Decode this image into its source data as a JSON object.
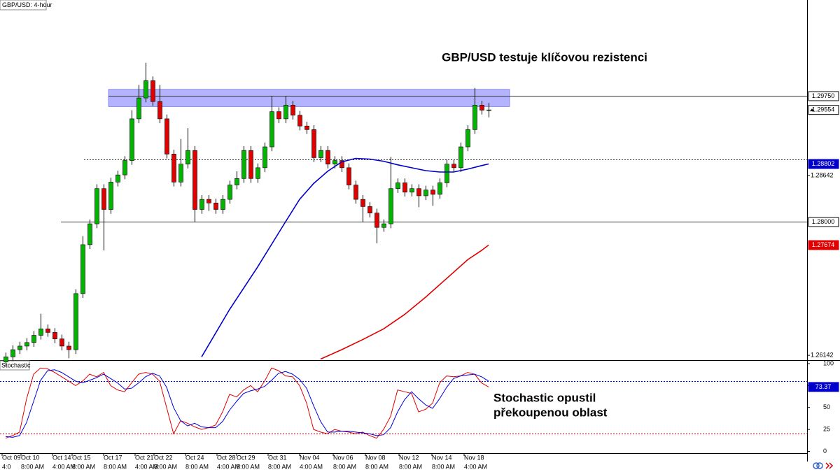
{
  "chart_data": [
    {
      "type": "candlestick",
      "title": "GBP/USD: 4-hour",
      "annotation": "GBP/USD testuje klíčovou rezistenci",
      "open": [
        1.2605,
        1.2612,
        1.2622,
        1.2627,
        1.2632,
        1.2642,
        1.2651,
        1.2646,
        1.2637,
        1.2627,
        1.2622,
        1.27,
        1.2768,
        1.2797,
        1.2846,
        1.2817,
        1.2855,
        1.2865,
        1.2885,
        1.2943,
        1.2972,
        1.2996,
        1.2967,
        1.2943,
        1.2894,
        1.2855,
        1.288,
        1.2899,
        1.2817,
        1.2831,
        1.2826,
        1.2817,
        1.2831,
        1.2851,
        1.286,
        1.2899,
        1.286,
        1.2875,
        1.2904,
        1.2953,
        1.2943,
        1.2962,
        1.2948,
        1.2933,
        1.2928,
        1.2889,
        1.2899,
        1.288,
        1.2885,
        1.2875,
        1.2851,
        1.2831,
        1.2821,
        1.2812,
        1.2792,
        1.2797,
        1.2846,
        1.2854,
        1.2841,
        1.2846,
        1.2836,
        1.2844,
        1.2838,
        1.2854,
        1.288,
        1.2875,
        1.2904,
        1.2928,
        1.2962,
        1.2955
      ],
      "high": [
        1.2618,
        1.2628,
        1.2633,
        1.2638,
        1.2648,
        1.2672,
        1.2657,
        1.2652,
        1.2643,
        1.2633,
        1.2706,
        1.278,
        1.2803,
        1.2852,
        1.2852,
        1.2861,
        1.2871,
        1.2891,
        1.2955,
        1.299,
        1.3021,
        1.3002,
        1.299,
        1.2949,
        1.29,
        1.2915,
        1.293,
        1.2905,
        1.2837,
        1.2837,
        1.2832,
        1.2837,
        1.2857,
        1.287,
        1.2905,
        1.2905,
        1.2881,
        1.291,
        1.2975,
        1.2959,
        1.2975,
        1.2968,
        1.2954,
        1.2939,
        1.2934,
        1.2905,
        1.2905,
        1.2891,
        1.2891,
        1.2881,
        1.2857,
        1.2837,
        1.2827,
        1.2818,
        1.2803,
        1.289,
        1.286,
        1.286,
        1.2852,
        1.2852,
        1.285,
        1.285,
        1.286,
        1.2886,
        1.2886,
        1.291,
        1.2934,
        1.2986,
        1.2968,
        1.2965
      ],
      "low": [
        1.2599,
        1.2606,
        1.2616,
        1.2621,
        1.2626,
        1.2636,
        1.264,
        1.2631,
        1.2621,
        1.261,
        1.2616,
        1.2694,
        1.2762,
        1.2791,
        1.276,
        1.2811,
        1.2849,
        1.2859,
        1.2879,
        1.2937,
        1.2966,
        1.2961,
        1.2937,
        1.2888,
        1.2849,
        1.2849,
        1.2874,
        1.28,
        1.2811,
        1.2815,
        1.2811,
        1.2811,
        1.2825,
        1.2845,
        1.2854,
        1.2854,
        1.2854,
        1.2869,
        1.2898,
        1.2937,
        1.2937,
        1.2942,
        1.2927,
        1.2922,
        1.2883,
        1.2883,
        1.2874,
        1.2874,
        1.2869,
        1.2845,
        1.2825,
        1.28,
        1.2806,
        1.277,
        1.2786,
        1.2791,
        1.284,
        1.2835,
        1.2835,
        1.282,
        1.283,
        1.2822,
        1.2832,
        1.2848,
        1.2869,
        1.2869,
        1.2898,
        1.2922,
        1.2949,
        1.2945
      ],
      "close": [
        1.2612,
        1.2622,
        1.2627,
        1.2632,
        1.2642,
        1.2651,
        1.2646,
        1.2637,
        1.2627,
        1.2622,
        1.27,
        1.2768,
        1.2797,
        1.2846,
        1.2817,
        1.2855,
        1.2865,
        1.2885,
        1.2943,
        1.2972,
        1.2996,
        1.2967,
        1.2943,
        1.2894,
        1.2855,
        1.288,
        1.2899,
        1.2817,
        1.2831,
        1.2826,
        1.2817,
        1.2831,
        1.2851,
        1.286,
        1.2899,
        1.286,
        1.2875,
        1.2904,
        1.2953,
        1.2943,
        1.2962,
        1.2948,
        1.2933,
        1.2928,
        1.2889,
        1.2899,
        1.288,
        1.2885,
        1.2875,
        1.2851,
        1.2831,
        1.2821,
        1.2812,
        1.2792,
        1.2797,
        1.2846,
        1.2854,
        1.2841,
        1.2846,
        1.2836,
        1.2844,
        1.2838,
        1.2854,
        1.288,
        1.2875,
        1.2904,
        1.2928,
        1.2962,
        1.2955,
        1.29554
      ],
      "up_color": "#00b400",
      "down_color": "#e00000",
      "xlim": [
        -0.8,
        114.5
      ],
      "ylim": [
        1.26075,
        1.31082
      ],
      "yticks": [
        {
          "value": 1.28642,
          "label": "1.28642"
        },
        {
          "value": 1.26142,
          "label": "1.26142"
        }
      ],
      "levels": [
        {
          "value": 1.2975,
          "label": "1.29750",
          "start": 14.7,
          "style": "solid"
        },
        {
          "value": 1.28,
          "label": "1.28000",
          "start": 7.9,
          "style": "solid"
        },
        {
          "value": 1.2887,
          "start": 11.2,
          "style": "dotted"
        }
      ],
      "zone": {
        "ylim": [
          1.296,
          1.2984
        ],
        "xlim": [
          14.7,
          72
        ],
        "color": "#8080ff"
      },
      "current_label": "1.29554",
      "series": [
        {
          "color": "#0000c8",
          "last_label": "1.28802",
          "x": [
            28,
            32,
            36,
            40,
            42,
            44,
            46,
            48,
            50,
            52,
            54,
            56,
            58,
            60,
            62,
            64,
            66,
            68,
            69
          ],
          "values": [
            1.2612,
            1.2678,
            1.2737,
            1.28,
            1.2831,
            1.2853,
            1.287,
            1.2883,
            1.2888,
            1.2887,
            1.2884,
            1.2879,
            1.2875,
            1.2871,
            1.2869,
            1.2869,
            1.2873,
            1.2878,
            1.28802
          ]
        },
        {
          "color": "#e00000",
          "last_label": "1.27674",
          "x": [
            45,
            48,
            51,
            54,
            57,
            60,
            63,
            66,
            68,
            69
          ],
          "values": [
            1.2609,
            1.2622,
            1.2636,
            1.2651,
            1.2671,
            1.2695,
            1.2721,
            1.2747,
            1.276,
            1.27674
          ]
        }
      ]
    },
    {
      "type": "stochastic",
      "title": "Stochastic",
      "annotation": [
        "Stochastic opustil",
        "překoupenou oblast"
      ],
      "series": [
        {
          "color": "#e00000",
          "values": [
            15,
            18,
            22,
            60,
            88,
            95,
            94,
            90,
            85,
            80,
            75,
            80,
            88,
            85,
            90,
            75,
            70,
            68,
            78,
            88,
            90,
            88,
            80,
            50,
            20,
            35,
            32,
            28,
            25,
            27,
            30,
            45,
            65,
            62,
            70,
            75,
            68,
            80,
            95,
            92,
            86,
            85,
            75,
            55,
            25,
            22,
            20,
            25,
            23,
            22,
            20,
            22,
            18,
            15,
            25,
            40,
            70,
            68,
            66,
            45,
            48,
            55,
            78,
            86,
            85,
            86,
            90,
            88,
            78,
            73.37
          ]
        },
        {
          "color": "#0000dd",
          "values": [
            17,
            16,
            18,
            33,
            57,
            81,
            92,
            93,
            90,
            85,
            80,
            78,
            81,
            84,
            88,
            83,
            78,
            71,
            72,
            78,
            85,
            89,
            86,
            73,
            50,
            35,
            29,
            32,
            28,
            27,
            27,
            34,
            47,
            57,
            66,
            69,
            71,
            74,
            81,
            89,
            91,
            88,
            82,
            72,
            52,
            34,
            22,
            22,
            23,
            23,
            22,
            21,
            20,
            18,
            19,
            27,
            45,
            59,
            68,
            60,
            53,
            49,
            60,
            73,
            83,
            86,
            87,
            88,
            85,
            80
          ]
        }
      ],
      "current_label": "73.37",
      "xlim": [
        -0.8,
        114.5
      ],
      "ylim": [
        -2,
        104
      ],
      "yticks": [
        0,
        25,
        50,
        75,
        100
      ],
      "levels": [
        {
          "value": 80,
          "color": "#0000cc"
        },
        {
          "value": 20,
          "color": "#cc0000"
        }
      ],
      "xticks": [
        {
          "value": -0.5,
          "label": "Oct 09"
        },
        {
          "value": 2.2,
          "label": "Oct 10"
        },
        {
          "value": 6.7,
          "label": "Oct 14"
        },
        {
          "value": 9.5,
          "label": "Oct 15"
        },
        {
          "value": 14,
          "label": "Oct 17"
        },
        {
          "value": 18.5,
          "label": "Oct 21"
        },
        {
          "value": 21.2,
          "label": "Oct 22"
        },
        {
          "value": 25.7,
          "label": "Oct 24"
        },
        {
          "value": 30.2,
          "label": "Oct 28"
        },
        {
          "value": 33,
          "label": "Oct 29"
        },
        {
          "value": 37.5,
          "label": "Oct 31"
        },
        {
          "value": 42,
          "label": "Nov 04"
        },
        {
          "value": 46.8,
          "label": "Nov 06"
        },
        {
          "value": 51.4,
          "label": "Nov 08"
        },
        {
          "value": 56.2,
          "label": "Nov 12"
        },
        {
          "value": 60.9,
          "label": "Nov 14"
        },
        {
          "value": 65.5,
          "label": "Nov 18"
        }
      ],
      "xtick_times": [
        "4:0",
        "8:00 AM",
        "4:00 AM",
        "8:00 AM",
        "8:00 AM",
        "4:00 AM",
        "8:00 AM",
        "8:00 AM",
        "4:00 AM",
        "8:00 AM",
        "8:00 AM",
        "4:00 AM",
        "8:00 AM",
        "8:00 AM",
        "8:00 AM",
        "8:00 AM",
        "4:00 AM"
      ]
    }
  ]
}
